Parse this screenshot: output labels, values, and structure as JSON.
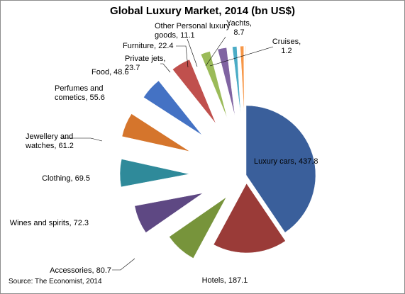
{
  "chart_data": {
    "type": "pie",
    "title": "Global Luxury Market, 2014 (bn US$)",
    "source": "Source: The Economist, 2014",
    "categories": [
      "Luxury cars",
      "Hotels",
      "Accessories",
      "Wines and spirits",
      "Clothing",
      "Jewellery and watches",
      "Perfumes and cometics",
      "Food",
      "Private jets",
      "Furniture",
      "Other Personal luxury goods",
      "Yachts",
      "Cruises"
    ],
    "values": [
      437.8,
      187.1,
      80.7,
      72.3,
      69.5,
      61.2,
      55.6,
      48.6,
      23.7,
      22.4,
      11.1,
      8.7,
      1.2
    ],
    "label_text": [
      "Luxury cars, 437.8",
      "Hotels, 187.1",
      "Accessories, 80.7",
      "Wines and spirits, 72.3",
      "Clothing, 69.5",
      "Jewellery and|watches, 61.2",
      "Perfumes and|cometics, 55.6",
      "Food, 48.6",
      "Private jets,|23.7",
      "Furniture, 22.4",
      "Other Personal luxury|goods, 11.1",
      "Yachts,|8.7",
      "Cruises,|1.2"
    ],
    "colors": [
      "#3a5f9b",
      "#9a3b38",
      "#77943b",
      "#5e4883",
      "#2f8a9a",
      "#d5752c",
      "#4472c4",
      "#c0504d",
      "#9bbb59",
      "#8064a2",
      "#4bacc6",
      "#f79646",
      "#f79646"
    ]
  }
}
